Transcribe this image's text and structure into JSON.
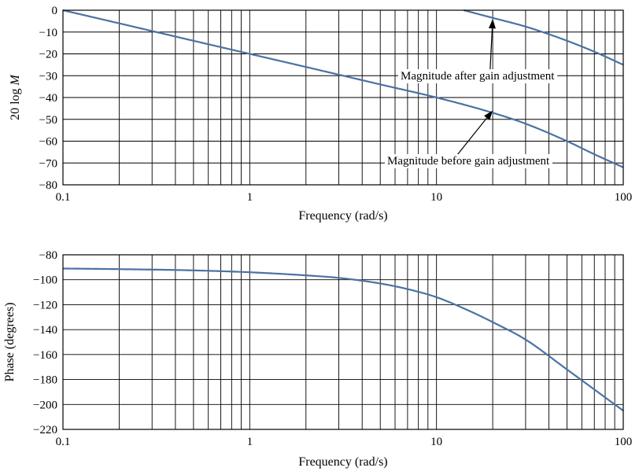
{
  "chart_data": [
    {
      "type": "line",
      "xscale": "log",
      "xlim": [
        0.1,
        100
      ],
      "ylim": [
        -80,
        0
      ],
      "yticks": [
        0,
        -10,
        -20,
        -30,
        -40,
        -50,
        -60,
        -70,
        -80
      ],
      "xticks": [
        {
          "value": 0.1,
          "label": "0.1"
        },
        {
          "value": 1,
          "label": "1"
        },
        {
          "value": 10,
          "label": "10"
        },
        {
          "value": 100,
          "label": "100"
        }
      ],
      "ylabel_prefix": "20 log ",
      "ylabel_var": "M",
      "xlabel": "Frequency (rad/s)",
      "grid": true,
      "series": [
        {
          "name": "Magnitude before gain adjustment",
          "x": [
            0.1,
            0.2,
            0.5,
            1,
            2,
            5,
            10,
            20,
            30,
            50,
            70,
            100
          ],
          "y": [
            0,
            -6,
            -14,
            -20,
            -26,
            -34,
            -40,
            -47,
            -52,
            -60,
            -66,
            -72
          ]
        },
        {
          "name": "Magnitude after gain adjustment",
          "x": [
            14,
            20,
            30,
            40,
            50,
            70,
            100
          ],
          "y": [
            0,
            -3.5,
            -7.5,
            -11,
            -14,
            -19,
            -25
          ]
        }
      ],
      "annotations": [
        {
          "text": "Magnitude after gain adjustment",
          "arrow_to": {
            "x": 20,
            "y": -4
          }
        },
        {
          "text": "Magnitude before gain adjustment",
          "arrow_to": {
            "x": 20,
            "y": -46
          }
        }
      ]
    },
    {
      "type": "line",
      "xscale": "log",
      "xlim": [
        0.1,
        100
      ],
      "ylim": [
        -220,
        -80
      ],
      "yticks": [
        -80,
        -100,
        -120,
        -140,
        -160,
        -180,
        -200,
        -220
      ],
      "xticks": [
        {
          "value": 0.1,
          "label": "0.1"
        },
        {
          "value": 1,
          "label": "1"
        },
        {
          "value": 10,
          "label": "10"
        },
        {
          "value": 100,
          "label": "100"
        }
      ],
      "ylabel": "Phase (degrees)",
      "xlabel": "Frequency (rad/s)",
      "grid": true,
      "series": [
        {
          "x": [
            0.1,
            0.2,
            0.5,
            1,
            2,
            3,
            5,
            7,
            10,
            15,
            20,
            30,
            50,
            70,
            100
          ],
          "y": [
            -91,
            -91.5,
            -92.5,
            -94,
            -96.5,
            -98.5,
            -103,
            -107.5,
            -114,
            -125,
            -134,
            -148,
            -172,
            -188,
            -205
          ]
        }
      ]
    }
  ]
}
